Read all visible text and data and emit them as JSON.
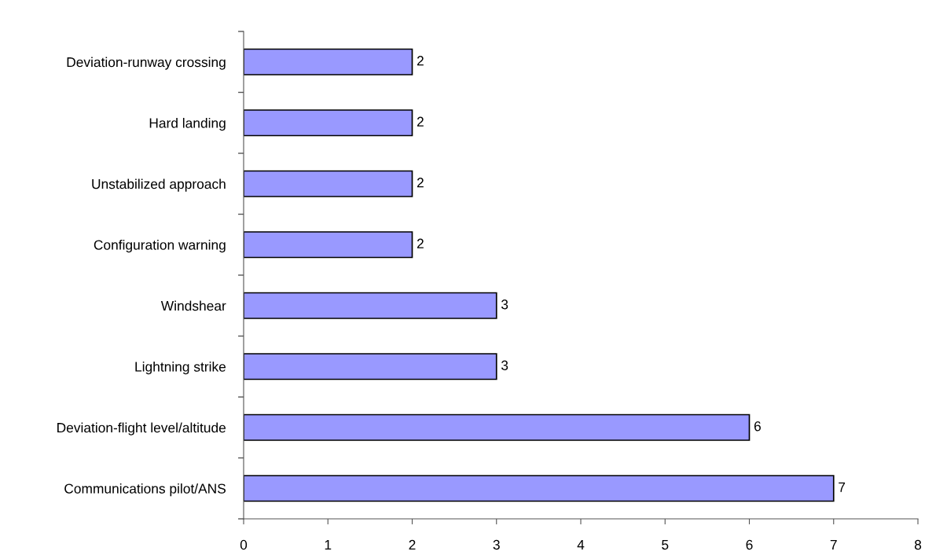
{
  "chart_data": {
    "type": "bar",
    "orientation": "horizontal",
    "categories": [
      "Deviation-runway crossing",
      "Hard landing",
      "Unstabilized approach",
      "Configuration warning",
      "Windshear",
      "Lightning strike",
      "Deviation-flight level/altitude",
      "Communications pilot/ANS"
    ],
    "values": [
      2,
      2,
      2,
      2,
      3,
      3,
      6,
      7
    ],
    "color": "#9999ff",
    "xlim": [
      0,
      8
    ],
    "xticks": [
      0,
      1,
      2,
      3,
      4,
      5,
      6,
      7,
      8
    ],
    "data_labels": true,
    "grid": false,
    "legend": false
  }
}
